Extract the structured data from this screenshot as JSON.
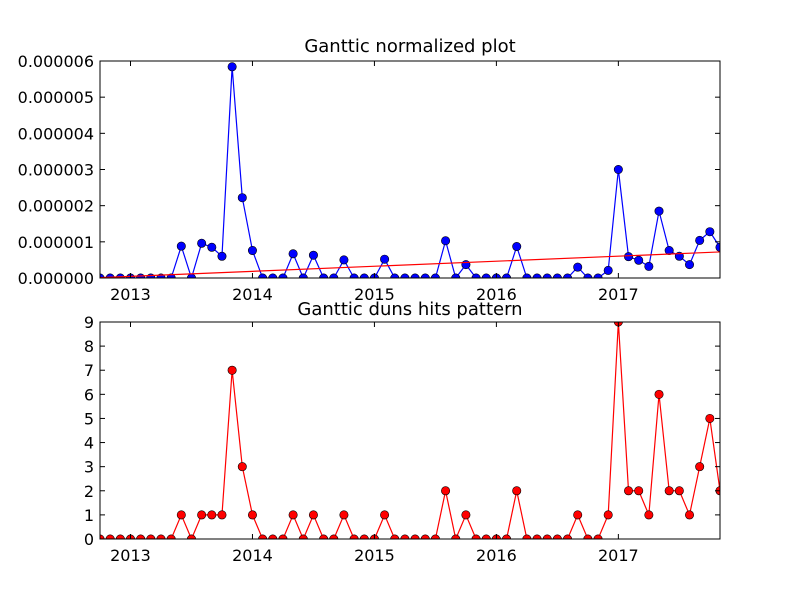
{
  "chart_data": [
    {
      "type": "line",
      "title": "Ganttic normalized plot",
      "xlabel": "",
      "ylabel": "",
      "x_tick_labels": [
        "2013",
        "2014",
        "2015",
        "2016",
        "2017"
      ],
      "x_tick_dates": [
        "2013-01",
        "2014-01",
        "2015-01",
        "2016-01",
        "2017-01"
      ],
      "xlim": [
        "2012-10",
        "2017-11"
      ],
      "ylim": [
        0,
        6e-06
      ],
      "y_tick_labels": [
        "0.000000",
        "0.000001",
        "0.000002",
        "0.000003",
        "0.000004",
        "0.000005",
        "0.000006"
      ],
      "y_tick_values": [
        0,
        1e-06,
        2e-06,
        3e-06,
        4e-06,
        5e-06,
        6e-06
      ],
      "grid": false,
      "series": [
        {
          "color": "#0000ff",
          "marker": "circle",
          "x": [
            "2012-10",
            "2012-11",
            "2012-12",
            "2013-01",
            "2013-02",
            "2013-03",
            "2013-04",
            "2013-05",
            "2013-06",
            "2013-07",
            "2013-08",
            "2013-09",
            "2013-10",
            "2013-11",
            "2013-12",
            "2014-01",
            "2014-02",
            "2014-03",
            "2014-04",
            "2014-05",
            "2014-06",
            "2014-07",
            "2014-08",
            "2014-09",
            "2014-10",
            "2014-11",
            "2014-12",
            "2015-01",
            "2015-02",
            "2015-03",
            "2015-04",
            "2015-05",
            "2015-06",
            "2015-07",
            "2015-08",
            "2015-09",
            "2015-10",
            "2015-11",
            "2015-12",
            "2016-01",
            "2016-02",
            "2016-03",
            "2016-04",
            "2016-05",
            "2016-06",
            "2016-07",
            "2016-08",
            "2016-09",
            "2016-10",
            "2016-11",
            "2016-12",
            "2017-01",
            "2017-02",
            "2017-03",
            "2017-04",
            "2017-05",
            "2017-06",
            "2017-07",
            "2017-08",
            "2017-09",
            "2017-10",
            "2017-11"
          ],
          "values": [
            0,
            0,
            0,
            0,
            0,
            0,
            0,
            0,
            8.8e-07,
            0,
            9.6e-07,
            8.5e-07,
            6e-07,
            5.84e-06,
            2.22e-06,
            7.6e-07,
            0,
            0,
            0,
            6.7e-07,
            0,
            6.3e-07,
            0,
            0,
            5e-07,
            0,
            0,
            0,
            5.2e-07,
            0,
            0,
            0,
            0,
            0,
            1.03e-06,
            0,
            3.7e-07,
            0,
            0,
            0,
            0,
            8.7e-07,
            0,
            0,
            0,
            0,
            0,
            3e-07,
            0,
            0,
            2.1e-07,
            3e-06,
            5.9e-07,
            4.9e-07,
            3.2e-07,
            1.85e-06,
            7.6e-07,
            6e-07,
            3.7e-07,
            1.04e-06,
            1.28e-06,
            8.5e-07
          ]
        },
        {
          "color": "#ff0000",
          "marker": "none",
          "x": [
            "2012-10",
            "2017-11"
          ],
          "values": [
            1e-08,
            7.2e-07
          ]
        }
      ]
    },
    {
      "type": "line",
      "title": "Ganttic duns hits pattern",
      "xlabel": "",
      "ylabel": "",
      "x_tick_labels": [
        "2013",
        "2014",
        "2015",
        "2016",
        "2017"
      ],
      "x_tick_dates": [
        "2013-01",
        "2014-01",
        "2015-01",
        "2016-01",
        "2017-01"
      ],
      "xlim": [
        "2012-10",
        "2017-11"
      ],
      "ylim": [
        0,
        9
      ],
      "y_tick_labels": [
        "0",
        "1",
        "2",
        "3",
        "4",
        "5",
        "6",
        "7",
        "8",
        "9"
      ],
      "y_tick_values": [
        0,
        1,
        2,
        3,
        4,
        5,
        6,
        7,
        8,
        9
      ],
      "grid": false,
      "series": [
        {
          "color": "#ff0000",
          "marker": "circle",
          "x": [
            "2012-10",
            "2012-11",
            "2012-12",
            "2013-01",
            "2013-02",
            "2013-03",
            "2013-04",
            "2013-05",
            "2013-06",
            "2013-07",
            "2013-08",
            "2013-09",
            "2013-10",
            "2013-11",
            "2013-12",
            "2014-01",
            "2014-02",
            "2014-03",
            "2014-04",
            "2014-05",
            "2014-06",
            "2014-07",
            "2014-08",
            "2014-09",
            "2014-10",
            "2014-11",
            "2014-12",
            "2015-01",
            "2015-02",
            "2015-03",
            "2015-04",
            "2015-05",
            "2015-06",
            "2015-07",
            "2015-08",
            "2015-09",
            "2015-10",
            "2015-11",
            "2015-12",
            "2016-01",
            "2016-02",
            "2016-03",
            "2016-04",
            "2016-05",
            "2016-06",
            "2016-07",
            "2016-08",
            "2016-09",
            "2016-10",
            "2016-11",
            "2016-12",
            "2017-01",
            "2017-02",
            "2017-03",
            "2017-04",
            "2017-05",
            "2017-06",
            "2017-07",
            "2017-08",
            "2017-09",
            "2017-10",
            "2017-11"
          ],
          "values": [
            0,
            0,
            0,
            0,
            0,
            0,
            0,
            0,
            1,
            0,
            1,
            1,
            1,
            7,
            3,
            1,
            0,
            0,
            0,
            1,
            0,
            1,
            0,
            0,
            1,
            0,
            0,
            0,
            1,
            0,
            0,
            0,
            0,
            0,
            2,
            0,
            1,
            0,
            0,
            0,
            0,
            2,
            0,
            0,
            0,
            0,
            0,
            1,
            0,
            0,
            1,
            9,
            2,
            2,
            1,
            6,
            2,
            2,
            1,
            3,
            5,
            2
          ]
        }
      ]
    }
  ]
}
